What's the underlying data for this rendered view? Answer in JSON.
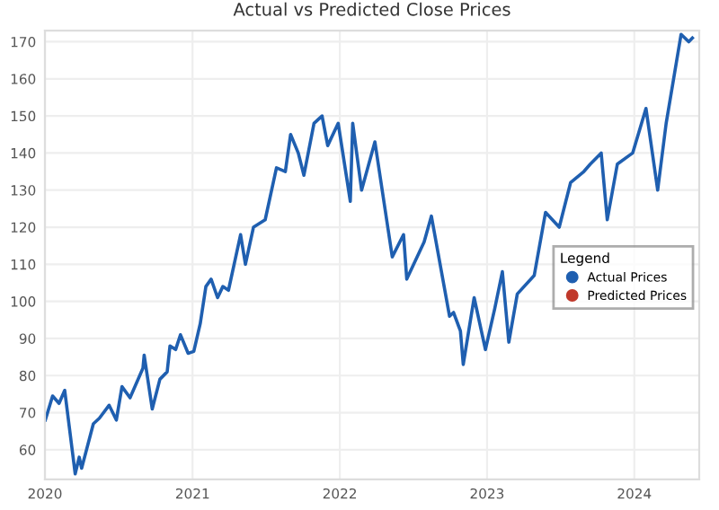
{
  "chart_data": {
    "type": "line",
    "title": "Actual vs Predicted Close Prices",
    "x": [
      "2020-01-02",
      "2020-01-20",
      "2020-02-05",
      "2020-02-19",
      "2020-03-16",
      "2020-03-26",
      "2020-04-01",
      "2020-04-30",
      "2020-05-15",
      "2020-06-08",
      "2020-06-26",
      "2020-07-10",
      "2020-07-30",
      "2020-08-31",
      "2020-09-03",
      "2020-09-23",
      "2020-10-12",
      "2020-10-30",
      "2020-11-06",
      "2020-11-20",
      "2020-12-02",
      "2020-12-21",
      "2021-01-04",
      "2021-01-20",
      "2021-02-03",
      "2021-02-16",
      "2021-03-04",
      "2021-03-17",
      "2021-03-31",
      "2021-04-30",
      "2021-05-12",
      "2021-06-01",
      "2021-06-30",
      "2021-07-28",
      "2021-08-19",
      "2021-09-01",
      "2021-09-20",
      "2021-10-04",
      "2021-10-29",
      "2021-11-18",
      "2021-12-02",
      "2021-12-28",
      "2022-01-27",
      "2022-02-02",
      "2022-02-24",
      "2022-03-29",
      "2022-05-11",
      "2022-06-08",
      "2022-06-16",
      "2022-07-29",
      "2022-08-16",
      "2022-09-30",
      "2022-10-10",
      "2022-10-27",
      "2022-11-03",
      "2022-11-30",
      "2022-12-28",
      "2023-01-20",
      "2023-02-08",
      "2023-02-24",
      "2023-03-17",
      "2023-04-28",
      "2023-05-26",
      "2023-06-29",
      "2023-07-27",
      "2023-08-29",
      "2023-09-14",
      "2023-10-11",
      "2023-10-26",
      "2023-11-20",
      "2023-12-28",
      "2024-01-30",
      "2024-02-28",
      "2024-03-20",
      "2024-04-26",
      "2024-05-15",
      "2024-05-24"
    ],
    "series": [
      {
        "name": "Actual Prices",
        "color": "#1f5fb0",
        "values": [
          68,
          74.5,
          72.5,
          76,
          53.5,
          58,
          55,
          67,
          68.5,
          72,
          68,
          77,
          74,
          82,
          85.5,
          71,
          79,
          81,
          88,
          87,
          91,
          86,
          86.5,
          94,
          104,
          106,
          101,
          104,
          103,
          118,
          110,
          120,
          122,
          136,
          135,
          145,
          140,
          134,
          148,
          150,
          142,
          148,
          127,
          148,
          130,
          143,
          112,
          118,
          106,
          116,
          123,
          96,
          97,
          92,
          83,
          101,
          87,
          98,
          108,
          89,
          102,
          107,
          124,
          120,
          132,
          135,
          137,
          140,
          122,
          137,
          140,
          152,
          130,
          148,
          172,
          170,
          171
        ]
      },
      {
        "name": "Predicted Prices",
        "color": "#c0392b",
        "values": [
          null,
          null,
          null,
          null,
          null,
          null,
          null,
          null,
          null,
          null,
          null,
          null,
          null,
          null,
          null,
          null,
          null,
          null,
          null,
          null,
          null,
          null,
          null,
          null,
          null,
          null,
          null,
          null,
          null,
          null,
          null,
          null,
          null,
          null,
          null,
          null,
          null,
          null,
          null,
          null,
          null,
          null,
          null,
          null,
          null,
          null,
          null,
          null,
          null,
          null,
          null,
          null,
          null,
          null,
          null,
          null,
          null,
          null,
          null,
          null,
          null,
          null,
          null,
          null,
          null,
          null,
          null,
          null,
          null,
          null,
          null,
          null,
          null,
          null,
          null,
          null,
          null
        ]
      }
    ],
    "xlim": [
      "2020-01-01",
      "2024-06-10"
    ],
    "xticks": [
      "2020",
      "2021",
      "2022",
      "2023",
      "2024"
    ],
    "ylim": [
      52,
      173
    ],
    "yticks": [
      60,
      70,
      80,
      90,
      100,
      110,
      120,
      130,
      140,
      150,
      160,
      170
    ],
    "grid": true,
    "legend": "right",
    "legend_title": "Legend",
    "marker": "none"
  }
}
